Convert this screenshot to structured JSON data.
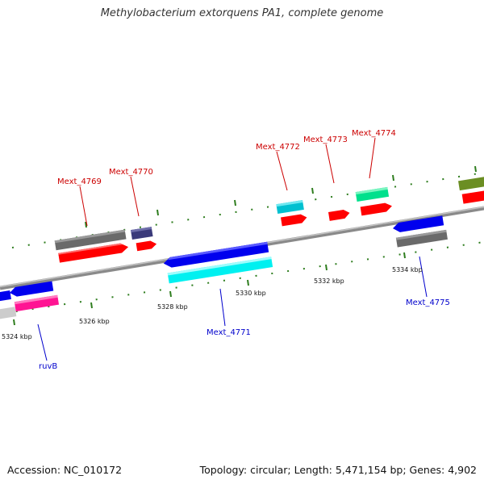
{
  "title": "Methylobacterium extorquens PA1, complete genome",
  "footer": {
    "accession": "Accession: NC_010172",
    "summary": "Topology: circular; Length: 5,471,154 bp; Genes: 4,902"
  },
  "colors": {
    "backbone": "#8a8a8a",
    "forward_label": "#cc0000",
    "reverse_label": "#0000cc",
    "tick": "#2e7d1e"
  },
  "scale_labels": [
    "5324 kbp",
    "5326 kbp",
    "5328 kbp",
    "5330 kbp",
    "5332 kbp",
    "5334 kbp"
  ],
  "gene_labels": {
    "forward": [
      "Mext_4769",
      "Mext_4770",
      "Mext_4772",
      "Mext_4773",
      "Mext_4774"
    ],
    "reverse": [
      "Mext_4771",
      "Mext_4775",
      "ruvB"
    ]
  }
}
